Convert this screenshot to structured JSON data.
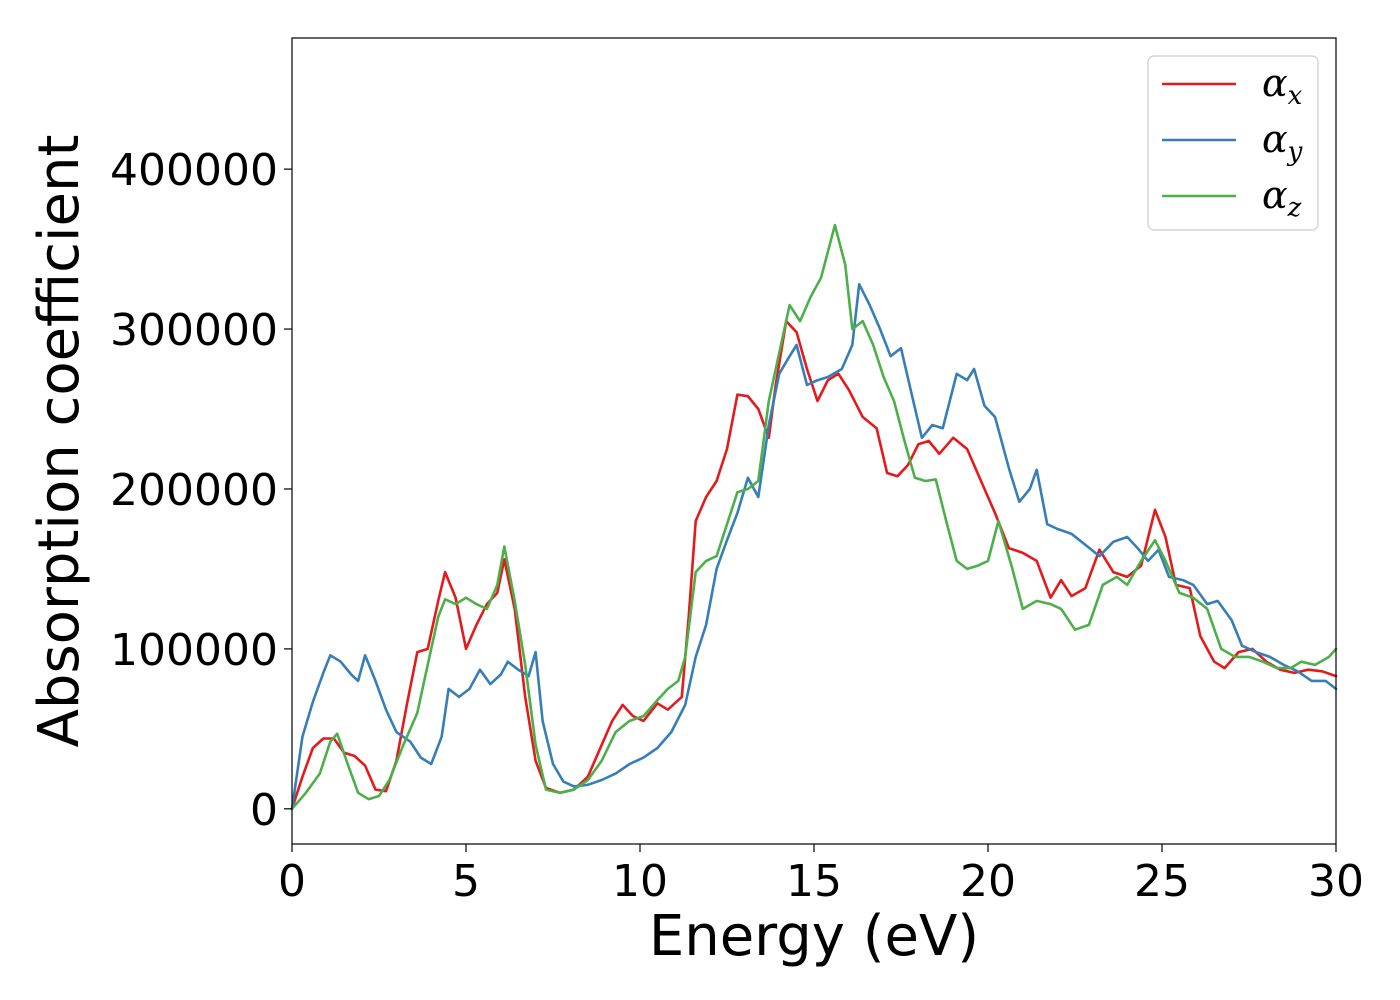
{
  "chart_data": {
    "type": "line",
    "title": "",
    "xlabel": "Energy (eV)",
    "ylabel": "Absorption coefficient",
    "xlim": [
      0,
      30
    ],
    "ylim": [
      -22000,
      482000
    ],
    "x_ticks": [
      0,
      5,
      10,
      15,
      20,
      25,
      30
    ],
    "y_ticks": [
      0,
      100000,
      200000,
      300000,
      400000
    ],
    "x_tick_labels": [
      "0",
      "5",
      "10",
      "15",
      "20",
      "25",
      "30"
    ],
    "y_tick_labels": [
      "0",
      "100000",
      "200000",
      "300000",
      "400000"
    ],
    "grid": false,
    "legend_position": "top-right",
    "series": [
      {
        "name": "α",
        "subscript": "x",
        "color": "#e41a1c",
        "points": [
          [
            0,
            0
          ],
          [
            0.3,
            20000
          ],
          [
            0.6,
            38000
          ],
          [
            0.9,
            44000
          ],
          [
            1.2,
            44000
          ],
          [
            1.5,
            35000
          ],
          [
            1.8,
            33000
          ],
          [
            2.1,
            27000
          ],
          [
            2.4,
            12000
          ],
          [
            2.7,
            11000
          ],
          [
            3.0,
            30000
          ],
          [
            3.3,
            65000
          ],
          [
            3.6,
            98000
          ],
          [
            3.9,
            100000
          ],
          [
            4.2,
            130000
          ],
          [
            4.4,
            148000
          ],
          [
            4.7,
            132000
          ],
          [
            5.0,
            100000
          ],
          [
            5.3,
            115000
          ],
          [
            5.6,
            128000
          ],
          [
            5.9,
            135000
          ],
          [
            6.1,
            156000
          ],
          [
            6.4,
            125000
          ],
          [
            6.7,
            70000
          ],
          [
            7.0,
            30000
          ],
          [
            7.3,
            13000
          ],
          [
            7.7,
            10000
          ],
          [
            8.1,
            12000
          ],
          [
            8.5,
            20000
          ],
          [
            8.9,
            40000
          ],
          [
            9.2,
            55000
          ],
          [
            9.5,
            65000
          ],
          [
            9.8,
            58000
          ],
          [
            10.1,
            55000
          ],
          [
            10.5,
            66000
          ],
          [
            10.8,
            62000
          ],
          [
            11.2,
            70000
          ],
          [
            11.4,
            120000
          ],
          [
            11.6,
            180000
          ],
          [
            11.9,
            195000
          ],
          [
            12.2,
            205000
          ],
          [
            12.5,
            225000
          ],
          [
            12.8,
            259000
          ],
          [
            13.1,
            258000
          ],
          [
            13.4,
            250000
          ],
          [
            13.7,
            232000
          ],
          [
            13.9,
            265000
          ],
          [
            14.2,
            305000
          ],
          [
            14.5,
            298000
          ],
          [
            14.8,
            275000
          ],
          [
            15.1,
            255000
          ],
          [
            15.4,
            268000
          ],
          [
            15.7,
            272000
          ],
          [
            16.0,
            262000
          ],
          [
            16.4,
            245000
          ],
          [
            16.8,
            238000
          ],
          [
            17.1,
            210000
          ],
          [
            17.4,
            208000
          ],
          [
            17.7,
            215000
          ],
          [
            18.0,
            228000
          ],
          [
            18.3,
            230000
          ],
          [
            18.6,
            222000
          ],
          [
            19.0,
            232000
          ],
          [
            19.4,
            225000
          ],
          [
            19.8,
            205000
          ],
          [
            20.2,
            185000
          ],
          [
            20.6,
            163000
          ],
          [
            21.0,
            160000
          ],
          [
            21.4,
            155000
          ],
          [
            21.8,
            132000
          ],
          [
            22.1,
            143000
          ],
          [
            22.4,
            133000
          ],
          [
            22.8,
            138000
          ],
          [
            23.2,
            162000
          ],
          [
            23.6,
            148000
          ],
          [
            24.0,
            145000
          ],
          [
            24.4,
            152000
          ],
          [
            24.8,
            187000
          ],
          [
            25.1,
            170000
          ],
          [
            25.4,
            140000
          ],
          [
            25.8,
            138000
          ],
          [
            26.1,
            108000
          ],
          [
            26.5,
            92000
          ],
          [
            26.8,
            88000
          ],
          [
            27.2,
            98000
          ],
          [
            27.6,
            100000
          ],
          [
            28.0,
            92000
          ],
          [
            28.4,
            87000
          ],
          [
            28.8,
            85000
          ],
          [
            29.2,
            87000
          ],
          [
            29.6,
            86000
          ],
          [
            30.0,
            83000
          ]
        ]
      },
      {
        "name": "α",
        "subscript": "y",
        "color": "#377eb8",
        "points": [
          [
            0,
            0
          ],
          [
            0.3,
            45000
          ],
          [
            0.6,
            67000
          ],
          [
            0.9,
            85000
          ],
          [
            1.1,
            96000
          ],
          [
            1.4,
            92000
          ],
          [
            1.7,
            84000
          ],
          [
            1.9,
            80000
          ],
          [
            2.1,
            96000
          ],
          [
            2.4,
            80000
          ],
          [
            2.7,
            62000
          ],
          [
            3.0,
            48000
          ],
          [
            3.4,
            42000
          ],
          [
            3.7,
            32000
          ],
          [
            4.0,
            28000
          ],
          [
            4.3,
            45000
          ],
          [
            4.5,
            75000
          ],
          [
            4.8,
            70000
          ],
          [
            5.1,
            75000
          ],
          [
            5.4,
            87000
          ],
          [
            5.7,
            78000
          ],
          [
            6.0,
            84000
          ],
          [
            6.2,
            92000
          ],
          [
            6.5,
            87000
          ],
          [
            6.8,
            83000
          ],
          [
            7.0,
            98000
          ],
          [
            7.2,
            55000
          ],
          [
            7.5,
            28000
          ],
          [
            7.8,
            17000
          ],
          [
            8.1,
            14000
          ],
          [
            8.5,
            15000
          ],
          [
            8.9,
            18000
          ],
          [
            9.3,
            22000
          ],
          [
            9.7,
            28000
          ],
          [
            10.1,
            32000
          ],
          [
            10.5,
            38000
          ],
          [
            10.9,
            48000
          ],
          [
            11.3,
            65000
          ],
          [
            11.6,
            95000
          ],
          [
            11.9,
            115000
          ],
          [
            12.2,
            150000
          ],
          [
            12.5,
            168000
          ],
          [
            12.8,
            185000
          ],
          [
            13.1,
            207000
          ],
          [
            13.4,
            195000
          ],
          [
            13.7,
            240000
          ],
          [
            14.0,
            272000
          ],
          [
            14.3,
            283000
          ],
          [
            14.5,
            290000
          ],
          [
            14.8,
            265000
          ],
          [
            15.1,
            268000
          ],
          [
            15.4,
            270000
          ],
          [
            15.8,
            275000
          ],
          [
            16.1,
            290000
          ],
          [
            16.3,
            328000
          ],
          [
            16.6,
            315000
          ],
          [
            16.9,
            300000
          ],
          [
            17.2,
            283000
          ],
          [
            17.5,
            288000
          ],
          [
            17.8,
            260000
          ],
          [
            18.1,
            232000
          ],
          [
            18.4,
            240000
          ],
          [
            18.7,
            238000
          ],
          [
            19.1,
            272000
          ],
          [
            19.4,
            268000
          ],
          [
            19.6,
            275000
          ],
          [
            19.9,
            252000
          ],
          [
            20.2,
            245000
          ],
          [
            20.6,
            213000
          ],
          [
            20.9,
            192000
          ],
          [
            21.2,
            200000
          ],
          [
            21.4,
            212000
          ],
          [
            21.7,
            178000
          ],
          [
            22.0,
            175000
          ],
          [
            22.4,
            172000
          ],
          [
            22.8,
            165000
          ],
          [
            23.2,
            158000
          ],
          [
            23.6,
            167000
          ],
          [
            24.0,
            170000
          ],
          [
            24.3,
            163000
          ],
          [
            24.6,
            155000
          ],
          [
            24.9,
            162000
          ],
          [
            25.2,
            145000
          ],
          [
            25.6,
            143000
          ],
          [
            25.9,
            140000
          ],
          [
            26.3,
            128000
          ],
          [
            26.6,
            130000
          ],
          [
            27.0,
            118000
          ],
          [
            27.3,
            102000
          ],
          [
            27.7,
            98000
          ],
          [
            28.1,
            95000
          ],
          [
            28.5,
            90000
          ],
          [
            28.9,
            86000
          ],
          [
            29.3,
            80000
          ],
          [
            29.7,
            80000
          ],
          [
            30.0,
            75000
          ]
        ]
      },
      {
        "name": "α",
        "subscript": "z",
        "color": "#4daf4a",
        "points": [
          [
            0,
            0
          ],
          [
            0.4,
            10000
          ],
          [
            0.8,
            22000
          ],
          [
            1.1,
            42000
          ],
          [
            1.3,
            47000
          ],
          [
            1.6,
            28000
          ],
          [
            1.9,
            10000
          ],
          [
            2.2,
            6000
          ],
          [
            2.5,
            8000
          ],
          [
            2.8,
            18000
          ],
          [
            3.2,
            40000
          ],
          [
            3.6,
            60000
          ],
          [
            3.9,
            90000
          ],
          [
            4.2,
            120000
          ],
          [
            4.4,
            131000
          ],
          [
            4.7,
            128000
          ],
          [
            5.0,
            132000
          ],
          [
            5.3,
            128000
          ],
          [
            5.6,
            125000
          ],
          [
            5.9,
            140000
          ],
          [
            6.1,
            164000
          ],
          [
            6.4,
            130000
          ],
          [
            6.7,
            90000
          ],
          [
            7.0,
            40000
          ],
          [
            7.3,
            12000
          ],
          [
            7.7,
            10000
          ],
          [
            8.1,
            12000
          ],
          [
            8.5,
            18000
          ],
          [
            8.9,
            30000
          ],
          [
            9.3,
            48000
          ],
          [
            9.7,
            55000
          ],
          [
            10.1,
            58000
          ],
          [
            10.5,
            68000
          ],
          [
            10.8,
            75000
          ],
          [
            11.1,
            80000
          ],
          [
            11.3,
            95000
          ],
          [
            11.6,
            148000
          ],
          [
            11.9,
            155000
          ],
          [
            12.2,
            158000
          ],
          [
            12.5,
            178000
          ],
          [
            12.8,
            198000
          ],
          [
            13.1,
            200000
          ],
          [
            13.4,
            205000
          ],
          [
            13.7,
            255000
          ],
          [
            14.0,
            285000
          ],
          [
            14.3,
            315000
          ],
          [
            14.6,
            305000
          ],
          [
            14.9,
            320000
          ],
          [
            15.2,
            332000
          ],
          [
            15.6,
            365000
          ],
          [
            15.9,
            340000
          ],
          [
            16.1,
            300000
          ],
          [
            16.4,
            305000
          ],
          [
            16.7,
            290000
          ],
          [
            17.0,
            270000
          ],
          [
            17.3,
            255000
          ],
          [
            17.6,
            230000
          ],
          [
            17.9,
            207000
          ],
          [
            18.2,
            205000
          ],
          [
            18.5,
            206000
          ],
          [
            18.8,
            180000
          ],
          [
            19.1,
            155000
          ],
          [
            19.4,
            150000
          ],
          [
            19.7,
            152000
          ],
          [
            20.0,
            155000
          ],
          [
            20.3,
            180000
          ],
          [
            20.7,
            150000
          ],
          [
            21.0,
            125000
          ],
          [
            21.4,
            130000
          ],
          [
            21.8,
            128000
          ],
          [
            22.1,
            125000
          ],
          [
            22.5,
            112000
          ],
          [
            22.9,
            115000
          ],
          [
            23.3,
            140000
          ],
          [
            23.7,
            145000
          ],
          [
            24.0,
            140000
          ],
          [
            24.4,
            155000
          ],
          [
            24.8,
            168000
          ],
          [
            25.1,
            155000
          ],
          [
            25.5,
            135000
          ],
          [
            25.9,
            132000
          ],
          [
            26.3,
            125000
          ],
          [
            26.7,
            100000
          ],
          [
            27.1,
            95000
          ],
          [
            27.5,
            95000
          ],
          [
            27.9,
            92000
          ],
          [
            28.3,
            88000
          ],
          [
            28.7,
            88000
          ],
          [
            29.0,
            92000
          ],
          [
            29.4,
            90000
          ],
          [
            29.8,
            95000
          ],
          [
            30.0,
            100000
          ]
        ]
      }
    ]
  }
}
